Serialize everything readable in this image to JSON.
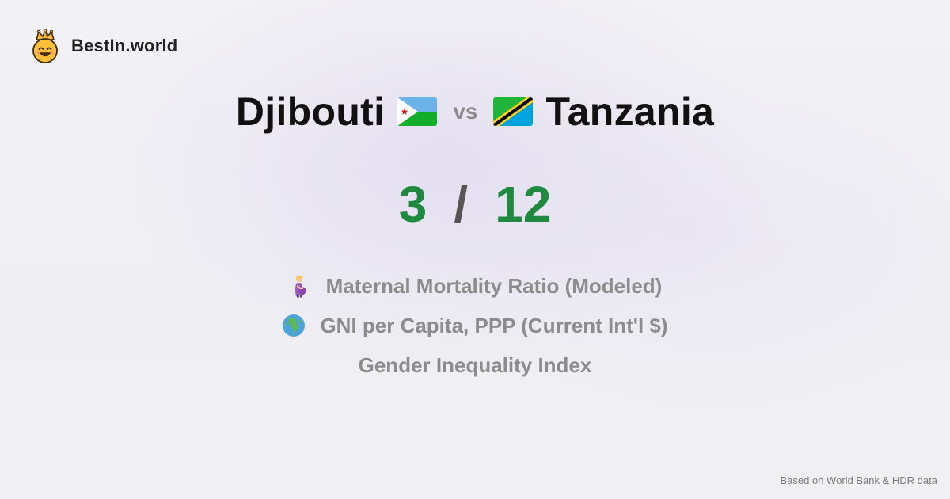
{
  "brand": {
    "name": "BestIn.world",
    "logo_icon": "smiling-crown-face-icon"
  },
  "comparison": {
    "country_a": {
      "name": "Djibouti",
      "flag_icon": "djibouti-flag-icon",
      "score": "3"
    },
    "vs_label": "vs",
    "country_b": {
      "name": "Tanzania",
      "flag_icon": "tanzania-flag-icon",
      "score": "12"
    },
    "score_separator": "/"
  },
  "metrics": [
    {
      "label": "Maternal Mortality Ratio (Modeled)",
      "icon": "pregnant-woman-icon"
    },
    {
      "label": "GNI per Capita, PPP (Current Int'l $)",
      "icon": "globe-africa-icon"
    },
    {
      "label": "Gender Inequality Index",
      "icon": ""
    }
  ],
  "footer": {
    "source_text": "Based on World Bank & HDR data"
  },
  "colors": {
    "score_green": "#1f8a3f",
    "metric_gray": "#8c8c8c",
    "title_black": "#111111"
  }
}
